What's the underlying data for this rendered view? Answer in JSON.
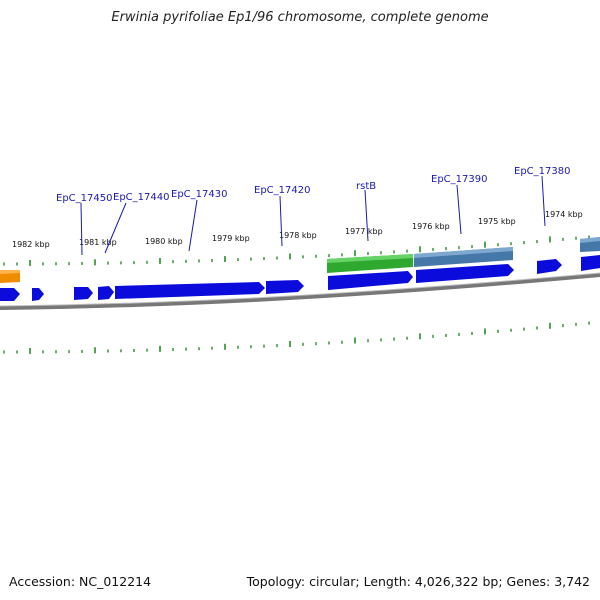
{
  "title": "Erwinia pyrifoliae Ep1/96 chromosome, complete genome",
  "accession_text": "Accession: NC_012214",
  "topology_text": "Topology: circular; Length: 4,026,322 bp; Genes: 3,742",
  "kbp_ticks": [
    "1982 kbp",
    "1981 kbp",
    "1980 kbp",
    "1979 kbp",
    "1978 kbp",
    "1977 kbp",
    "1976 kbp",
    "1975 kbp",
    "1974 kbp"
  ],
  "gene_labels": [
    "EpC_17450",
    "EpC_17440",
    "EpC_17430",
    "EpC_17420",
    "rstB",
    "EpC_17390",
    "EpC_17380"
  ],
  "colors": {
    "cds": "#0b0bdc",
    "gene_green": "#33bb33",
    "gene_steelblue": "#4a7fb0",
    "gene_orange": "#f08c00",
    "tick": "#2a8a2a",
    "backbone": "#7a7a7a",
    "label": "#1a1ab0"
  }
}
